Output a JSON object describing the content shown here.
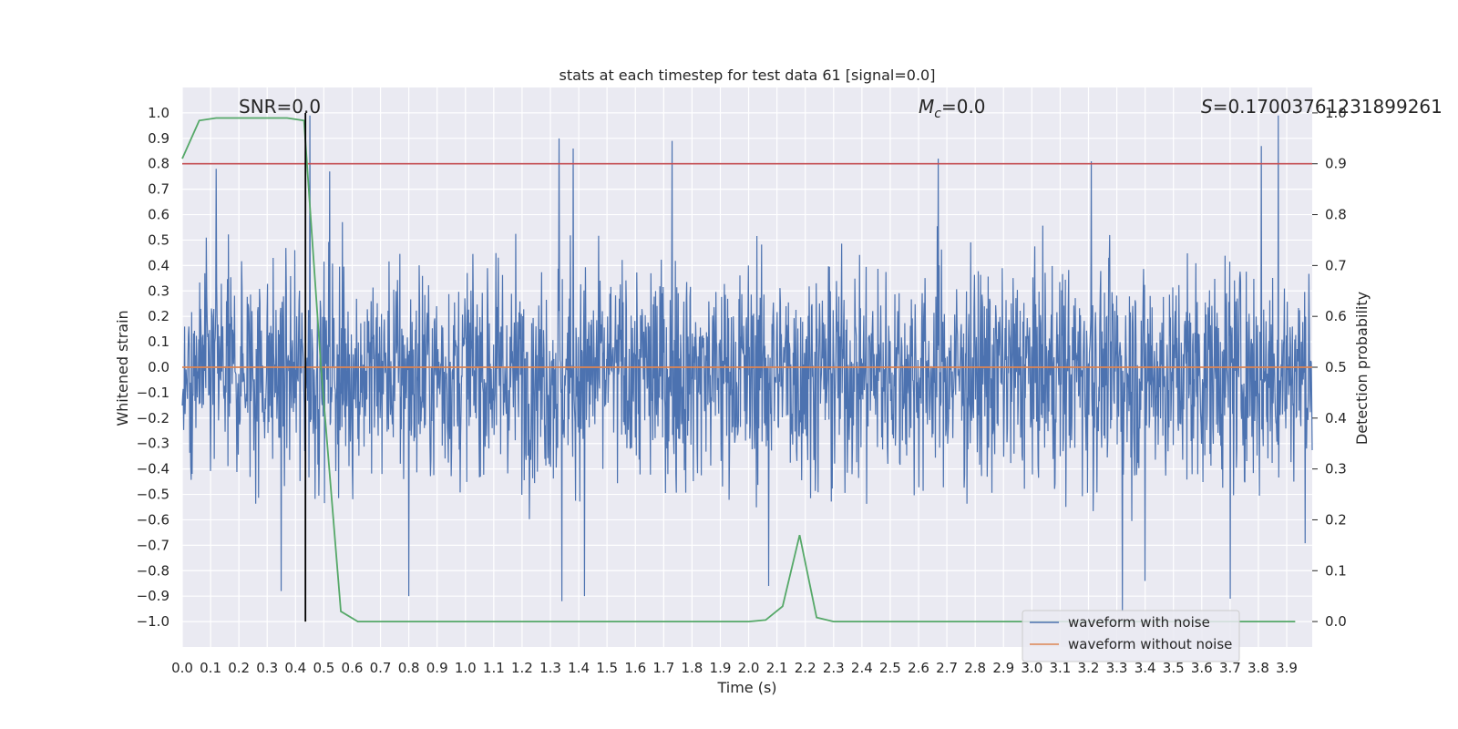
{
  "chart_data": {
    "type": "line",
    "title": "stats at each timestep for test data 61 [signal=0.0]",
    "xlabel": "Time (s)",
    "ylabel": "Whitened strain",
    "ylabel_right": "Detection probability",
    "xlim": [
      0.0,
      3.99
    ],
    "ylim": [
      -1.1,
      1.1
    ],
    "ylim_right": [
      -0.05,
      1.05
    ],
    "x_ticks": [
      0.0,
      0.1,
      0.2,
      0.3,
      0.4,
      0.5,
      0.6,
      0.7,
      0.8,
      0.9,
      1.0,
      1.1,
      1.2,
      1.3,
      1.4,
      1.5,
      1.6,
      1.7,
      1.8,
      1.9,
      2.0,
      2.1,
      2.2,
      2.3,
      2.4,
      2.5,
      2.6,
      2.7,
      2.8,
      2.9,
      3.0,
      3.1,
      3.2,
      3.3,
      3.4,
      3.5,
      3.6,
      3.7,
      3.8,
      3.9
    ],
    "x_tick_labels": [
      "0.0",
      "0.1",
      "0.2",
      "0.3",
      "0.4",
      "0.5",
      "0.6",
      "0.7",
      "0.8",
      "0.9",
      "1.0",
      "1.1",
      "1.2",
      "1.3",
      "1.4",
      "1.5",
      "1.6",
      "1.7",
      "1.8",
      "1.9",
      "2.0",
      "2.1",
      "2.2",
      "2.3",
      "2.4",
      "2.5",
      "2.6",
      "2.7",
      "2.8",
      "2.9",
      "3.0",
      "3.1",
      "3.2",
      "3.3",
      "3.4",
      "3.5",
      "3.6",
      "3.7",
      "3.8",
      "3.9"
    ],
    "y_ticks": [
      1.0,
      0.9,
      0.8,
      0.7,
      0.6,
      0.5,
      0.4,
      0.3,
      0.2,
      0.1,
      0.0,
      -0.1,
      -0.2,
      -0.3,
      -0.4,
      -0.5,
      -0.6,
      -0.7,
      -0.8,
      -0.9,
      -1.0
    ],
    "y_tick_labels": [
      "1.0",
      "0.9",
      "0.8",
      "0.7",
      "0.6",
      "0.5",
      "0.4",
      "0.3",
      "0.2",
      "0.1",
      "0.0",
      "−0.1",
      "−0.2",
      "−0.3",
      "−0.4",
      "−0.5",
      "−0.6",
      "−0.7",
      "−0.8",
      "−0.9",
      "−1.0"
    ],
    "y_right_ticks": [
      1.0,
      0.9,
      0.8,
      0.7,
      0.6,
      0.5,
      0.4,
      0.3,
      0.2,
      0.1,
      0.0
    ],
    "y_right_tick_labels": [
      "1.0",
      "0.9",
      "0.8",
      "0.7",
      "0.6",
      "0.5",
      "0.4",
      "0.3",
      "0.2",
      "0.1",
      "0.0"
    ],
    "grid": true,
    "legend_position": "lower right",
    "annotations": {
      "snr": "SNR=0.0",
      "mc_symbol": "M",
      "mc_sub": "c",
      "mc_value": "=0.0",
      "s_symbol": "S",
      "s_value": "=0.17003761231899261"
    },
    "series": [
      {
        "name": "waveform with noise",
        "axis": "left",
        "color": "#4c72b0",
        "kind": "noise",
        "x_range": [
          0.0,
          3.99
        ],
        "approx_range": [
          -1.0,
          1.0
        ],
        "peaks": [
          {
            "x": 0.12,
            "y": 0.78
          },
          {
            "x": 0.45,
            "y": 0.99
          },
          {
            "x": 0.52,
            "y": 0.77
          },
          {
            "x": 1.33,
            "y": 0.9
          },
          {
            "x": 1.38,
            "y": 0.86
          },
          {
            "x": 1.73,
            "y": 0.89
          },
          {
            "x": 2.67,
            "y": 0.82
          },
          {
            "x": 3.21,
            "y": 0.81
          },
          {
            "x": 3.81,
            "y": 0.87
          },
          {
            "x": 3.87,
            "y": 0.99
          },
          {
            "x": 0.8,
            "y": -0.9
          },
          {
            "x": 1.34,
            "y": -0.92
          },
          {
            "x": 1.42,
            "y": -0.9
          },
          {
            "x": 2.07,
            "y": -0.86
          },
          {
            "x": 3.32,
            "y": -0.96
          },
          {
            "x": 3.4,
            "y": -0.84
          },
          {
            "x": 3.7,
            "y": -0.91
          },
          {
            "x": 0.35,
            "y": -0.88
          }
        ]
      },
      {
        "name": "waveform without noise",
        "axis": "left",
        "color": "#dd8452",
        "x": [
          0.0,
          3.99
        ],
        "y": [
          0.0,
          0.0
        ]
      },
      {
        "name": "",
        "axis": "right",
        "color": "#55a868",
        "x": [
          0.0,
          0.06,
          0.12,
          0.19,
          0.25,
          0.31,
          0.37,
          0.43,
          0.49,
          0.56,
          0.62,
          0.68,
          0.74,
          0.8,
          1.0,
          1.5,
          2.0,
          2.06,
          2.12,
          2.18,
          2.24,
          2.3,
          2.36,
          2.5,
          3.0,
          3.5,
          3.93
        ],
        "y": [
          0.91,
          0.985,
          0.99,
          0.99,
          0.99,
          0.99,
          0.99,
          0.985,
          0.5,
          0.02,
          0.0,
          0.0,
          0.0,
          0.0,
          0.0,
          0.0,
          0.0,
          0.003,
          0.03,
          0.17,
          0.008,
          0.0,
          0.0,
          0.0,
          0.0,
          0.0,
          0.0
        ]
      },
      {
        "name": "",
        "axis": "right",
        "color": "#c44e52",
        "kind": "threshold",
        "x": [
          0.0,
          3.99
        ],
        "y": [
          0.9,
          0.9
        ]
      },
      {
        "name": "",
        "axis": "left",
        "color": "#000000",
        "kind": "marker",
        "x": [
          0.435,
          0.435
        ],
        "y": [
          -1.0,
          1.0
        ]
      }
    ]
  }
}
